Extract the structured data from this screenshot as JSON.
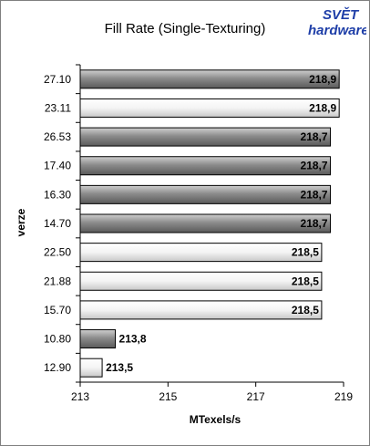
{
  "logo": {
    "line1": "SVĚT",
    "line2": "hardware"
  },
  "chart_data": {
    "type": "bar",
    "orientation": "horizontal",
    "title": "Fill Rate (Single-Texturing)",
    "xlabel": "MTexels/s",
    "ylabel": "verze",
    "xlim": [
      213,
      219
    ],
    "xticks": [
      "213",
      "215",
      "217",
      "219"
    ],
    "grid": false,
    "categories": [
      "27.10",
      "23.11",
      "26.53",
      "17.40",
      "16.30",
      "14.70",
      "22.50",
      "21.88",
      "15.70",
      "10.80",
      "12.90"
    ],
    "values": [
      218.9,
      218.9,
      218.7,
      218.7,
      218.7,
      218.7,
      218.5,
      218.5,
      218.5,
      213.8,
      213.5
    ],
    "value_labels": [
      "218,9",
      "218,9",
      "218,7",
      "218,7",
      "218,7",
      "218,7",
      "218,5",
      "218,5",
      "218,5",
      "213,8",
      "213,5"
    ],
    "bar_styles": [
      "dark",
      "light",
      "dark",
      "dark",
      "dark",
      "dark",
      "light",
      "light",
      "light",
      "dark",
      "light"
    ]
  },
  "colors": {
    "dark_bar": "#8a8a8a",
    "light_bar": "#f2f2f2",
    "logo_blue": "#1f3fa8"
  }
}
